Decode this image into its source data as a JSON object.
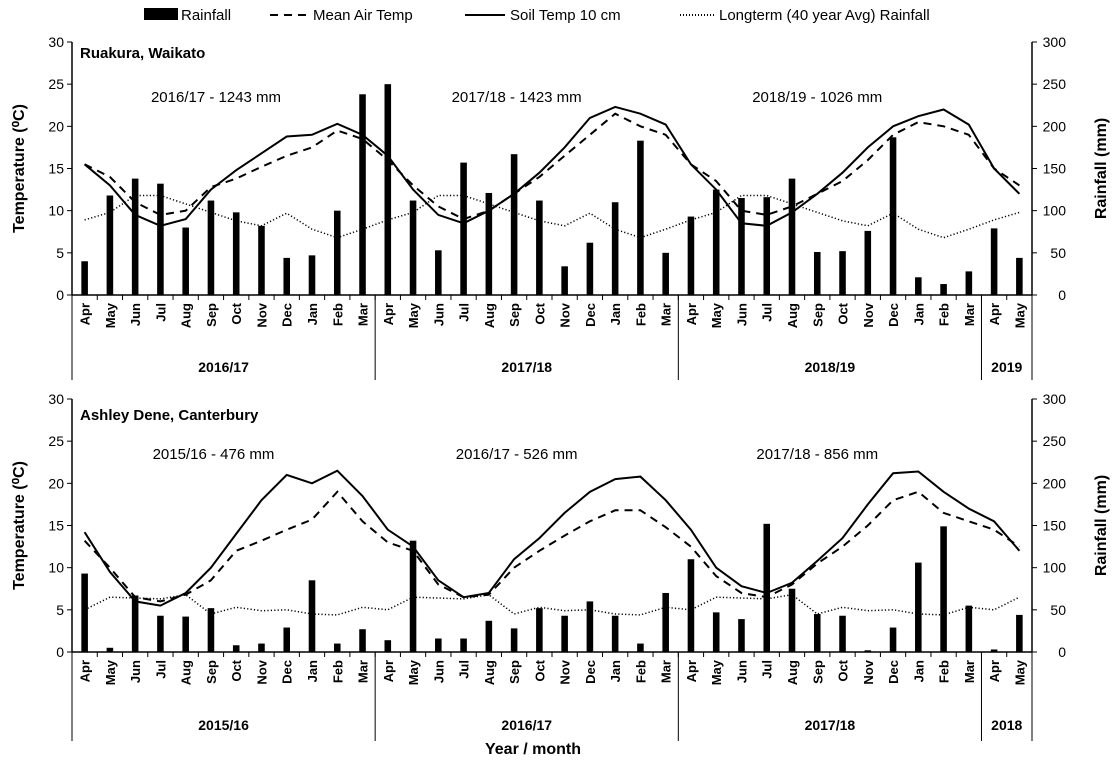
{
  "legend": [
    {
      "key": "rainfall",
      "label": "Rainfall"
    },
    {
      "key": "air",
      "label": "Mean Air Temp"
    },
    {
      "key": "soil",
      "label": "Soil Temp 10 cm"
    },
    {
      "key": "longterm",
      "label": "Longterm (40 year Avg) Rainfall"
    }
  ],
  "xlabel": "Year / month",
  "chart_data": [
    {
      "type": "bar",
      "site": "Ruakura, Waikato",
      "ylabel_left": "Temperature (⁰C)",
      "ylabel_right": "Rainfall (mm)",
      "ylim_left": [
        0,
        30
      ],
      "ylim_right": [
        0,
        300
      ],
      "yticks_left": [
        "0",
        "5",
        "10",
        "15",
        "20",
        "25",
        "30"
      ],
      "yticks_right": [
        "0",
        "50",
        "100",
        "150",
        "200",
        "250",
        "300"
      ],
      "categories": [
        "Apr",
        "May",
        "Jun",
        "Jul",
        "Aug",
        "Sep",
        "Oct",
        "Nov",
        "Dec",
        "Jan",
        "Feb",
        "Mar",
        "Apr",
        "May",
        "Jun",
        "Jul",
        "Aug",
        "Sep",
        "Oct",
        "Nov",
        "Dec",
        "Jan",
        "Feb",
        "Mar",
        "Apr",
        "May",
        "Jun",
        "Jul",
        "Aug",
        "Sep",
        "Oct",
        "Nov",
        "Dec",
        "Jan",
        "Feb",
        "Mar",
        "Apr",
        "May"
      ],
      "groups": [
        {
          "label": "2016/17",
          "start": 0,
          "end": 11
        },
        {
          "label": "2017/18",
          "start": 12,
          "end": 23
        },
        {
          "label": "2018/19",
          "start": 24,
          "end": 35
        },
        {
          "label": "2019",
          "start": 36,
          "end": 37
        }
      ],
      "annotations": [
        {
          "text": "2016/17 - 1243 mm",
          "at": 5.7
        },
        {
          "text": "2017/18 - 1423 mm",
          "at": 17.6
        },
        {
          "text": "2018/19 - 1026 mm",
          "at": 29.5
        }
      ],
      "series": [
        {
          "name": "Rainfall",
          "kind": "bar",
          "axis": "right",
          "values": [
            40,
            118,
            138,
            132,
            80,
            112,
            98,
            82,
            44,
            47,
            100,
            238,
            250,
            112,
            53,
            157,
            121,
            167,
            112,
            34,
            62,
            110,
            183,
            50,
            93,
            125,
            115,
            116,
            138,
            51,
            52,
            76,
            187,
            21,
            13,
            28,
            79,
            44
          ]
        },
        {
          "name": "Mean Air Temp",
          "kind": "line",
          "style": "dashed",
          "axis": "left",
          "values": [
            15.5,
            14.0,
            11.0,
            9.5,
            10.0,
            12.8,
            13.8,
            15.2,
            16.5,
            17.5,
            19.5,
            18.5,
            16.0,
            13.0,
            10.5,
            9.0,
            10.0,
            12.0,
            14.0,
            16.5,
            19.0,
            21.5,
            20.0,
            19.0,
            15.5,
            13.5,
            10.0,
            9.5,
            10.5,
            12.0,
            13.5,
            16.0,
            19.0,
            20.5,
            20.0,
            19.0,
            15.0,
            13.0
          ]
        },
        {
          "name": "Soil Temp 10 cm",
          "kind": "line",
          "style": "solid",
          "axis": "left",
          "values": [
            15.5,
            13.0,
            9.5,
            8.2,
            9.0,
            12.5,
            14.8,
            16.8,
            18.8,
            19.0,
            20.3,
            19.0,
            16.5,
            12.5,
            9.5,
            8.5,
            10.0,
            12.0,
            14.5,
            17.5,
            21.0,
            22.3,
            21.5,
            20.2,
            15.5,
            12.5,
            8.5,
            8.2,
            9.8,
            12.0,
            14.5,
            17.5,
            20.0,
            21.2,
            22.0,
            20.2,
            15.0,
            12.0
          ]
        },
        {
          "name": "Longterm (40 year Avg) Rainfall",
          "kind": "line",
          "style": "dotted",
          "axis": "right",
          "values": [
            89,
            98,
            118,
            118,
            108,
            98,
            88,
            82,
            97,
            78,
            68,
            78,
            89,
            98,
            118,
            118,
            108,
            98,
            88,
            82,
            97,
            78,
            68,
            78,
            89,
            98,
            118,
            118,
            108,
            98,
            88,
            82,
            97,
            78,
            68,
            78,
            89,
            98
          ]
        }
      ]
    },
    {
      "type": "bar",
      "site": "Ashley Dene, Canterbury",
      "ylabel_left": "Temperature (⁰C)",
      "ylabel_right": "Rainfall (mm)",
      "ylim_left": [
        0,
        30
      ],
      "ylim_right": [
        0,
        300
      ],
      "yticks_left": [
        "0",
        "5",
        "10",
        "15",
        "20",
        "25",
        "30"
      ],
      "yticks_right": [
        "0",
        "50",
        "100",
        "150",
        "200",
        "250",
        "300"
      ],
      "categories": [
        "Apr",
        "May",
        "Jun",
        "Jul",
        "Aug",
        "Sep",
        "Oct",
        "Nov",
        "Dec",
        "Jan",
        "Feb",
        "Mar",
        "Apr",
        "May",
        "Jun",
        "Jul",
        "Aug",
        "Sep",
        "Oct",
        "Nov",
        "Dec",
        "Jan",
        "Feb",
        "Mar",
        "Apr",
        "May",
        "Jun",
        "Jul",
        "Aug",
        "Sep",
        "Oct",
        "Nov",
        "Dec",
        "Jan",
        "Feb",
        "Mar",
        "Apr",
        "May"
      ],
      "groups": [
        {
          "label": "2015/16",
          "start": 0,
          "end": 11
        },
        {
          "label": "2016/17",
          "start": 12,
          "end": 23
        },
        {
          "label": "2017/18",
          "start": 24,
          "end": 35
        },
        {
          "label": "2018",
          "start": 36,
          "end": 37
        }
      ],
      "annotations": [
        {
          "text": "2015/16 - 476 mm",
          "at": 5.6
        },
        {
          "text": "2016/17 - 526 mm",
          "at": 17.6
        },
        {
          "text": "2017/18 - 856 mm",
          "at": 29.5
        }
      ],
      "series": [
        {
          "name": "Rainfall",
          "kind": "bar",
          "axis": "right",
          "values": [
            93,
            5,
            67,
            43,
            42,
            52,
            8,
            10,
            29,
            85,
            10,
            27,
            14,
            132,
            16,
            16,
            37,
            28,
            52,
            43,
            60,
            43,
            10,
            70,
            110,
            47,
            39,
            152,
            75,
            45,
            43,
            2,
            29,
            106,
            149,
            55,
            3,
            44
          ]
        },
        {
          "name": "Mean Air Temp",
          "kind": "line",
          "style": "dashed",
          "axis": "left",
          "values": [
            13.2,
            10.0,
            6.5,
            6.0,
            6.8,
            8.5,
            12.0,
            13.2,
            14.5,
            15.7,
            19.0,
            15.5,
            13.0,
            12.0,
            8.0,
            6.5,
            6.8,
            10.0,
            12.0,
            13.8,
            15.5,
            16.8,
            16.8,
            14.8,
            12.5,
            9.0,
            7.0,
            6.5,
            8.0,
            10.5,
            12.5,
            15.0,
            18.0,
            19.0,
            16.5,
            15.5,
            14.5,
            12.5
          ]
        },
        {
          "name": "Soil Temp 10 cm",
          "kind": "line",
          "style": "solid",
          "axis": "left",
          "values": [
            14.2,
            9.5,
            6.0,
            5.5,
            7.0,
            10.0,
            14.0,
            18.0,
            21.0,
            20.0,
            21.5,
            18.5,
            14.5,
            12.5,
            8.5,
            6.5,
            7.0,
            11.0,
            13.5,
            16.5,
            19.0,
            20.5,
            20.8,
            18.0,
            14.5,
            10.0,
            7.8,
            7.0,
            8.2,
            10.8,
            13.5,
            17.5,
            21.2,
            21.4,
            19.0,
            17.0,
            15.5,
            12.0
          ]
        },
        {
          "name": "Longterm (40 year Avg) Rainfall",
          "kind": "line",
          "style": "dotted",
          "axis": "right",
          "values": [
            50,
            65,
            64,
            63,
            68,
            45,
            53,
            49,
            50,
            45,
            44,
            53,
            50,
            65,
            64,
            63,
            68,
            45,
            53,
            49,
            50,
            45,
            44,
            53,
            50,
            65,
            64,
            63,
            68,
            45,
            53,
            49,
            50,
            45,
            44,
            53,
            50,
            65
          ]
        }
      ]
    }
  ]
}
